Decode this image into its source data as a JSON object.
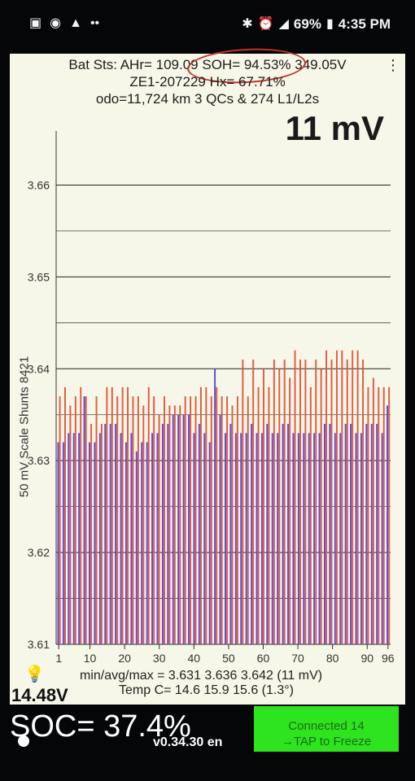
{
  "status_bar": {
    "left_icons": [
      "image-icon",
      "target-icon",
      "warning-icon",
      "more-dots-icon"
    ],
    "right_icons": [
      "bluetooth-icon",
      "alarm-icon",
      "signal-icon"
    ],
    "battery": "69%",
    "time": "4:35 PM"
  },
  "header": {
    "line1_a": "Bat Sts:  AHr= 109.09",
    "line1_b": " SOH= 94.53%",
    "line1_c": " 349.05V",
    "line2": "ZE1-207229  Hx= 67.71%",
    "line3": "odo=11,724 km  3 QCs & 274 L1/L2s"
  },
  "delta_label": "11 mV",
  "y_axis_label": "50 mV Scale  Shunts 8421",
  "chart_data": {
    "type": "bar",
    "ylim": [
      3.61,
      3.665
    ],
    "y_ticks": [
      "3.61",
      "3.62",
      "3.63",
      "3.64",
      "3.65",
      "3.66"
    ],
    "x_ticks": [
      "1",
      "10",
      "20",
      "30",
      "40",
      "50",
      "60",
      "70",
      "80",
      "90",
      "96"
    ],
    "grid": true,
    "series": [
      {
        "color": "#e05a40",
        "values": [
          3.637,
          3.638,
          3.636,
          3.637,
          3.638,
          3.637,
          3.634,
          3.637,
          3.634,
          3.638,
          3.638,
          3.637,
          3.638,
          3.638,
          3.637,
          3.637,
          3.636,
          3.638,
          3.637,
          3.635,
          3.637,
          3.636,
          3.636,
          3.636,
          3.637,
          3.637,
          3.637,
          3.638,
          3.638,
          3.637,
          3.638,
          3.637,
          3.637,
          3.636,
          3.637,
          3.641,
          3.637,
          3.641,
          3.638,
          3.64,
          3.638,
          3.641,
          3.64,
          3.641,
          3.639,
          3.642,
          3.641,
          3.641,
          3.638,
          3.641,
          3.64,
          3.642,
          3.641,
          3.642,
          3.642,
          3.641,
          3.642,
          3.642,
          3.641,
          3.638,
          3.639,
          3.638,
          3.638,
          3.638
        ]
      },
      {
        "color": "#5b4bd6",
        "values": [
          3.632,
          3.632,
          3.633,
          3.633,
          3.633,
          3.637,
          3.632,
          3.632,
          3.633,
          3.634,
          3.634,
          3.634,
          3.633,
          3.632,
          3.633,
          3.631,
          3.632,
          3.632,
          3.633,
          3.633,
          3.634,
          3.634,
          3.635,
          3.635,
          3.635,
          3.635,
          3.633,
          3.634,
          3.633,
          3.632,
          3.64,
          3.635,
          3.633,
          3.634,
          3.633,
          3.633,
          3.633,
          3.634,
          3.633,
          3.633,
          3.634,
          3.633,
          3.633,
          3.634,
          3.634,
          3.633,
          3.633,
          3.633,
          3.633,
          3.633,
          3.633,
          3.634,
          3.634,
          3.633,
          3.633,
          3.634,
          3.634,
          3.633,
          3.633,
          3.634,
          3.634,
          3.634,
          3.633,
          3.636
        ]
      }
    ]
  },
  "stats": {
    "line1": "min/avg/max = 3.631  3.636  3.642  (11 mV)",
    "line2": "Temp C= 14.6  15.9  15.6  (1.3°)"
  },
  "voltage": "14.48V",
  "soc": "SOC= 37.4%",
  "version": "v0.34.30 en",
  "connect_button": {
    "line1": "Connected 14",
    "line2": "→TAP to Freeze"
  },
  "colors": {
    "panel_bg": "#f6f7e8",
    "button_green": "#2ee41e",
    "soh_circle": "#c0342c"
  }
}
